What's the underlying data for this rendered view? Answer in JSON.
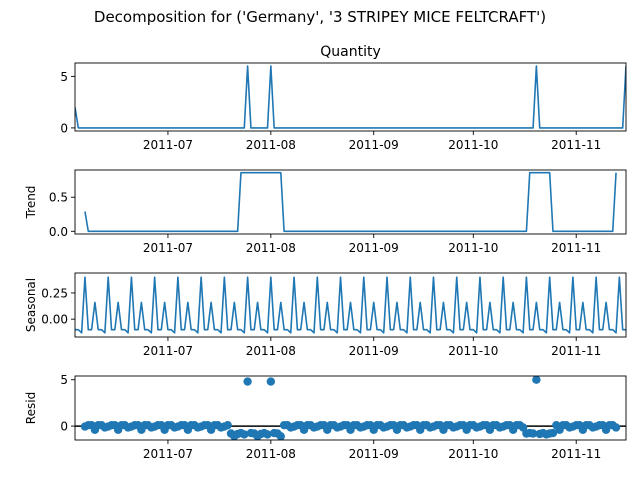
{
  "figure": {
    "suptitle": "Decomposition for ('Germany', '3 STRIPEY MICE FELTCRAFT')",
    "line_color": "#1f77b4",
    "zero_line_color": "#000000"
  },
  "chart_data": [
    {
      "type": "line",
      "title": "Quantity",
      "ylabel": "",
      "x_start": "2011-06-03",
      "x_end": "2011-11-16",
      "ylim": [
        -0.3,
        6.3
      ],
      "yticks": [
        0,
        5
      ],
      "ytick_labels": [
        "0",
        "5"
      ],
      "xticks": [
        "2011-07-01",
        "2011-08-01",
        "2011-09-01",
        "2011-10-01",
        "2011-11-01"
      ],
      "xtick_labels": [
        "2011-07",
        "2011-08",
        "2011-09",
        "2011-10",
        "2011-11"
      ],
      "series": [
        {
          "points": [
            [
              "2011-06-03",
              2
            ],
            [
              "2011-06-04",
              0
            ],
            [
              "2011-07-24",
              0
            ],
            [
              "2011-07-25",
              6
            ],
            [
              "2011-07-26",
              0
            ],
            [
              "2011-07-31",
              0
            ],
            [
              "2011-08-01",
              6
            ],
            [
              "2011-08-02",
              0
            ],
            [
              "2011-10-19",
              0
            ],
            [
              "2011-10-20",
              6
            ],
            [
              "2011-10-21",
              0
            ],
            [
              "2011-11-15",
              0
            ],
            [
              "2011-11-16",
              6
            ]
          ]
        }
      ]
    },
    {
      "type": "line",
      "title": "",
      "ylabel": "Trend",
      "x_start": "2011-06-03",
      "x_end": "2011-11-16",
      "ylim": [
        -0.04,
        0.9
      ],
      "yticks": [
        0.0,
        0.5
      ],
      "ytick_labels": [
        "0.0",
        "0.5"
      ],
      "xticks": [
        "2011-07-01",
        "2011-08-01",
        "2011-09-01",
        "2011-10-01",
        "2011-11-01"
      ],
      "xtick_labels": [
        "2011-07",
        "2011-08",
        "2011-09",
        "2011-10",
        "2011-11"
      ],
      "series": [
        {
          "points": [
            [
              "2011-06-06",
              0.29
            ],
            [
              "2011-06-07",
              0
            ],
            [
              "2011-07-22",
              0
            ],
            [
              "2011-07-23",
              0.86
            ],
            [
              "2011-08-04",
              0.86
            ],
            [
              "2011-08-05",
              0
            ],
            [
              "2011-10-17",
              0
            ],
            [
              "2011-10-18",
              0.86
            ],
            [
              "2011-10-24",
              0.86
            ],
            [
              "2011-10-25",
              0
            ],
            [
              "2011-11-12",
              0
            ],
            [
              "2011-11-13",
              0.86
            ]
          ]
        }
      ]
    },
    {
      "type": "line",
      "title": "",
      "ylabel": "Seasonal",
      "x_start": "2011-06-03",
      "x_end": "2011-11-16",
      "ylim": [
        -0.17,
        0.44
      ],
      "yticks": [
        0.0,
        0.25
      ],
      "ytick_labels": [
        "0.00",
        "0.25"
      ],
      "xticks": [
        "2011-07-01",
        "2011-08-01",
        "2011-09-01",
        "2011-10-01",
        "2011-11-01"
      ],
      "xtick_labels": [
        "2011-07",
        "2011-08",
        "2011-09",
        "2011-10",
        "2011-11"
      ],
      "series": [
        {
          "period_start": "2011-06-03",
          "pattern": [
            -0.1,
            -0.1,
            -0.13,
            0.4,
            -0.1,
            -0.1,
            0.16
          ]
        }
      ]
    },
    {
      "type": "scatter",
      "title": "",
      "ylabel": "Resid",
      "x_start": "2011-06-03",
      "x_end": "2011-11-16",
      "ylim": [
        -1.5,
        5.4
      ],
      "yticks": [
        0,
        5
      ],
      "ytick_labels": [
        "0",
        "5"
      ],
      "xticks": [
        "2011-07-01",
        "2011-08-01",
        "2011-09-01",
        "2011-10-01",
        "2011-11-01"
      ],
      "xtick_labels": [
        "2011-07",
        "2011-08",
        "2011-09",
        "2011-10",
        "2011-11"
      ],
      "zero_line": 0,
      "series": [
        {
          "base_pattern": [
            -0.05,
            0.1,
            0.1,
            -0.4,
            0.1,
            0.1,
            -0.15
          ],
          "start": "2011-06-06",
          "end": "2011-11-13",
          "low_ranges": [
            [
              "2011-07-20",
              "2011-08-04"
            ],
            [
              "2011-10-17",
              "2011-10-25"
            ]
          ],
          "low_pattern": [
            -0.8,
            -0.75,
            -0.8,
            -1.1,
            -0.85,
            -0.75,
            -0.9
          ],
          "outliers": [
            [
              "2011-07-25",
              4.8
            ],
            [
              "2011-08-01",
              4.8
            ],
            [
              "2011-10-20",
              5.0
            ]
          ]
        }
      ]
    }
  ]
}
